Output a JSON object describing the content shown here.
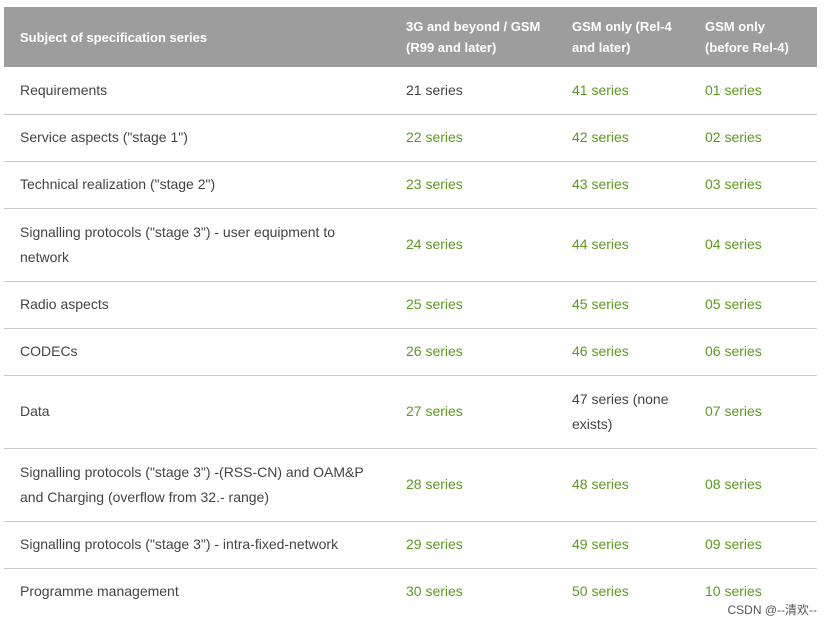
{
  "headers": [
    "Subject of specification series",
    "3G and beyond / GSM (R99 and later)",
    "GSM only (Rel-4 and later)",
    "GSM only (before Rel-4)"
  ],
  "rows": [
    {
      "subject": "Requirements",
      "g3": "21 series",
      "gsm4": "41 series",
      "gsm": "01 series"
    },
    {
      "subject": "Service aspects (\"stage 1\")",
      "g3": "22 series",
      "gsm4": "42 series",
      "gsm": "02 series"
    },
    {
      "subject": "Technical realization (\"stage 2\")",
      "g3": "23 series",
      "gsm4": "43 series",
      "gsm": "03 series"
    },
    {
      "subject": "Signalling protocols (\"stage 3\") - user equipment to network",
      "g3": "24 series",
      "gsm4": "44 series",
      "gsm": "04 series"
    },
    {
      "subject": "Radio aspects",
      "g3": "25 series",
      "gsm4": "45 series",
      "gsm": "05 series"
    },
    {
      "subject": "CODECs",
      "g3": "26 series",
      "gsm4": "46 series",
      "gsm": "06 series"
    },
    {
      "subject": "Data",
      "g3": "27 series",
      "gsm4": "47 series (none exists)",
      "gsm": "07 series"
    },
    {
      "subject": "Signalling protocols (\"stage 3\") -(RSS-CN) and OAM&P and Charging (overflow from 32.- range)",
      "g3": "28 series",
      "gsm4": "48 series",
      "gsm": "08 series"
    },
    {
      "subject": "Signalling protocols (\"stage 3\") - intra-fixed-network",
      "g3": "29 series",
      "gsm4": "49 series",
      "gsm": "09 series"
    },
    {
      "subject": "Programme management",
      "g3": "30 series",
      "gsm4": "50 series",
      "gsm": "10 series"
    }
  ],
  "colors": {
    "link": "#5c9a1f",
    "header_bg": "#9d9d9d"
  },
  "watermark": "CSDN @--清欢--"
}
